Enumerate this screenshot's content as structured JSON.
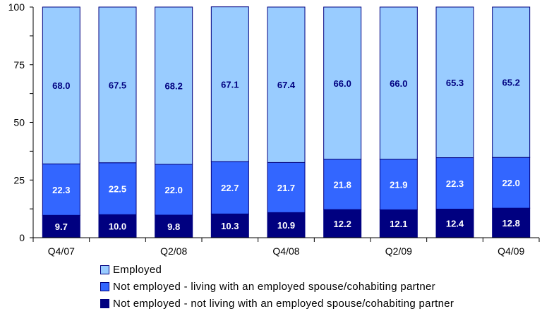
{
  "chart_data": {
    "type": "bar",
    "stacked": true,
    "categories": [
      "Q4/07",
      "",
      "Q2/08",
      "",
      "Q4/08",
      "",
      "Q2/09",
      "",
      "Q4/09"
    ],
    "ylim": [
      0,
      100
    ],
    "yticks": [
      0,
      25,
      50,
      75,
      100
    ],
    "grid": false,
    "legend_position": "bottom",
    "series": [
      {
        "name": "Not employed - not living with an employed spouse/cohabiting partner",
        "color": "#000080",
        "label_color": "#ffffff",
        "values": [
          9.7,
          10.0,
          9.8,
          10.3,
          10.9,
          12.2,
          12.1,
          12.4,
          12.8
        ]
      },
      {
        "name": "Not employed - living with an employed spouse/cohabiting partner",
        "color": "#3366ff",
        "label_color": "#ffffff",
        "values": [
          22.3,
          22.5,
          22.0,
          22.7,
          21.7,
          21.8,
          21.9,
          22.3,
          22.0
        ]
      },
      {
        "name": "Employed",
        "color": "#99ccff",
        "label_color": "#000080",
        "values": [
          68.0,
          67.5,
          68.2,
          67.1,
          67.4,
          66.0,
          66.0,
          65.3,
          65.2
        ]
      }
    ]
  }
}
